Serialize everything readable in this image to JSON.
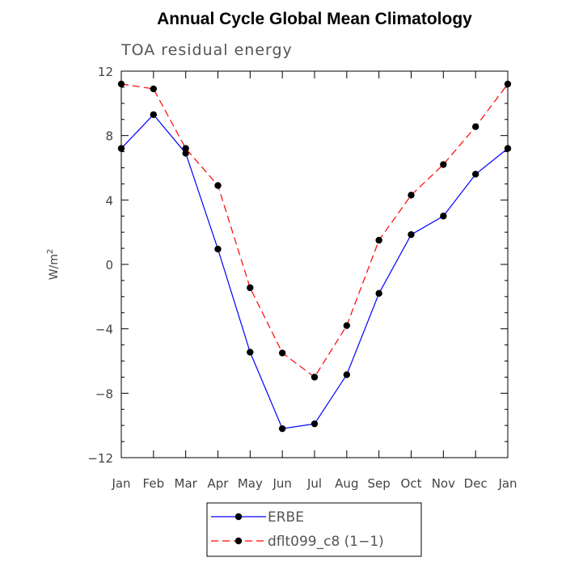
{
  "chart_data": {
    "type": "line",
    "title": "Annual Cycle Global Mean Climatology",
    "subtitle": "TOA residual energy",
    "ylabel_base": "W/m",
    "ylabel_sup": "2",
    "categories": [
      "Jan",
      "Feb",
      "Mar",
      "Apr",
      "May",
      "Jun",
      "Jul",
      "Aug",
      "Sep",
      "Oct",
      "Nov",
      "Dec",
      "Jan"
    ],
    "ylim": [
      -12,
      12
    ],
    "yticks": [
      -12,
      -8,
      -4,
      0,
      4,
      8,
      12
    ],
    "ytick_labels": [
      "−12",
      "−8",
      "−4",
      "0",
      "4",
      "8",
      "12"
    ],
    "series": [
      {
        "name": "ERBE",
        "color": "#0000ff",
        "dash": "solid",
        "values": [
          7.2,
          9.3,
          6.9,
          0.95,
          -5.45,
          -10.2,
          -9.9,
          -6.85,
          -1.8,
          1.85,
          3.0,
          5.6,
          7.2
        ]
      },
      {
        "name": "dflt099_c8 (1−1)",
        "color": "#ff0000",
        "dash": "dashed",
        "values": [
          11.2,
          10.9,
          7.2,
          4.9,
          -1.45,
          -5.5,
          -7.0,
          -3.8,
          1.5,
          4.3,
          6.2,
          8.55,
          11.2
        ]
      }
    ],
    "grid": false,
    "legend_position": "bottom"
  }
}
